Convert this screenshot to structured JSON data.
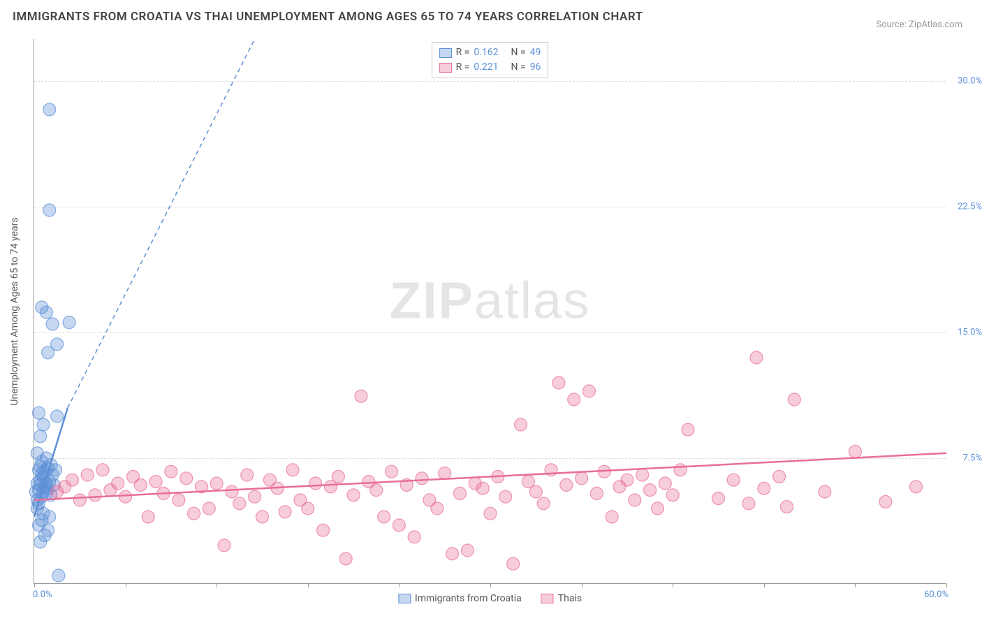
{
  "title": "IMMIGRANTS FROM CROATIA VS THAI UNEMPLOYMENT AMONG AGES 65 TO 74 YEARS CORRELATION CHART",
  "source": "Source: ZipAtlas.com",
  "watermark_a": "ZIP",
  "watermark_b": "atlas",
  "y_axis_label": "Unemployment Among Ages 65 to 74 years",
  "chart": {
    "type": "scatter",
    "background_color": "#ffffff",
    "grid_color": "#dddddd",
    "axis_color": "#999999",
    "xlim": [
      0,
      60
    ],
    "ylim": [
      0,
      32.5
    ],
    "y_ticks": [
      7.5,
      15.0,
      22.5,
      30.0
    ],
    "y_tick_labels": [
      "7.5%",
      "15.0%",
      "22.5%",
      "30.0%"
    ],
    "x_ticks": [
      0,
      6,
      12,
      18,
      24,
      30,
      36,
      42,
      48,
      54,
      60
    ],
    "x_label_0": "0.0%",
    "x_label_max": "60.0%",
    "marker_radius": 9,
    "marker_opacity": 0.35,
    "series": [
      {
        "name": "Immigrants from Croatia",
        "color": "#5b8fd6",
        "r": "0.162",
        "n": "49",
        "trend_line": {
          "x1": 0,
          "y1": 4.0,
          "x2": 2.2,
          "y2": 10.5,
          "dash_x2": 14.5,
          "dash_y2": 32.5
        },
        "points": [
          [
            0.1,
            5.5
          ],
          [
            0.2,
            5.0
          ],
          [
            0.3,
            5.6
          ],
          [
            0.4,
            6.2
          ],
          [
            0.3,
            6.8
          ],
          [
            0.5,
            5.2
          ],
          [
            0.6,
            6.4
          ],
          [
            0.4,
            7.0
          ],
          [
            0.2,
            4.5
          ],
          [
            0.7,
            5.8
          ],
          [
            0.5,
            6.6
          ],
          [
            0.8,
            6.0
          ],
          [
            0.9,
            6.9
          ],
          [
            0.6,
            5.5
          ],
          [
            0.3,
            4.8
          ],
          [
            0.4,
            5.9
          ],
          [
            0.7,
            6.7
          ],
          [
            0.5,
            7.3
          ],
          [
            0.8,
            5.4
          ],
          [
            1.0,
            6.1
          ],
          [
            1.1,
            7.1
          ],
          [
            0.9,
            5.7
          ],
          [
            1.2,
            6.5
          ],
          [
            0.6,
            4.2
          ],
          [
            0.2,
            6.0
          ],
          [
            0.3,
            3.5
          ],
          [
            0.5,
            3.8
          ],
          [
            0.7,
            2.9
          ],
          [
            0.9,
            3.2
          ],
          [
            0.4,
            2.5
          ],
          [
            1.0,
            4.0
          ],
          [
            1.3,
            5.9
          ],
          [
            1.4,
            6.8
          ],
          [
            0.8,
            7.5
          ],
          [
            1.1,
            5.3
          ],
          [
            0.2,
            7.8
          ],
          [
            0.4,
            8.8
          ],
          [
            0.6,
            9.5
          ],
          [
            0.3,
            10.2
          ],
          [
            1.5,
            10.0
          ],
          [
            0.9,
            13.8
          ],
          [
            1.5,
            14.3
          ],
          [
            1.2,
            15.5
          ],
          [
            0.8,
            16.2
          ],
          [
            0.5,
            16.5
          ],
          [
            2.3,
            15.6
          ],
          [
            1.0,
            22.3
          ],
          [
            1.0,
            28.3
          ],
          [
            1.6,
            0.5
          ]
        ]
      },
      {
        "name": "Thais",
        "color": "#e86e98",
        "r": "0.221",
        "n": "96",
        "trend_line": {
          "x1": 0,
          "y1": 5.0,
          "x2": 60,
          "y2": 7.8
        },
        "points": [
          [
            1.5,
            5.5
          ],
          [
            2.0,
            5.8
          ],
          [
            2.5,
            6.2
          ],
          [
            3.0,
            5.0
          ],
          [
            3.5,
            6.5
          ],
          [
            4.0,
            5.3
          ],
          [
            4.5,
            6.8
          ],
          [
            5.0,
            5.6
          ],
          [
            5.5,
            6.0
          ],
          [
            6.0,
            5.2
          ],
          [
            6.5,
            6.4
          ],
          [
            7.0,
            5.9
          ],
          [
            7.5,
            4.0
          ],
          [
            8.0,
            6.1
          ],
          [
            8.5,
            5.4
          ],
          [
            9.0,
            6.7
          ],
          [
            9.5,
            5.0
          ],
          [
            10.0,
            6.3
          ],
          [
            10.5,
            4.2
          ],
          [
            11.0,
            5.8
          ],
          [
            11.5,
            4.5
          ],
          [
            12.0,
            6.0
          ],
          [
            12.5,
            2.3
          ],
          [
            13.0,
            5.5
          ],
          [
            13.5,
            4.8
          ],
          [
            14.0,
            6.5
          ],
          [
            14.5,
            5.2
          ],
          [
            15.0,
            4.0
          ],
          [
            15.5,
            6.2
          ],
          [
            16.0,
            5.7
          ],
          [
            16.5,
            4.3
          ],
          [
            17.0,
            6.8
          ],
          [
            17.5,
            5.0
          ],
          [
            18.0,
            4.5
          ],
          [
            18.5,
            6.0
          ],
          [
            19.0,
            3.2
          ],
          [
            19.5,
            5.8
          ],
          [
            20.0,
            6.4
          ],
          [
            20.5,
            1.5
          ],
          [
            21.0,
            5.3
          ],
          [
            21.5,
            11.2
          ],
          [
            22.0,
            6.1
          ],
          [
            22.5,
            5.6
          ],
          [
            23.0,
            4.0
          ],
          [
            23.5,
            6.7
          ],
          [
            24.0,
            3.5
          ],
          [
            24.5,
            5.9
          ],
          [
            25.0,
            2.8
          ],
          [
            25.5,
            6.3
          ],
          [
            26.0,
            5.0
          ],
          [
            26.5,
            4.5
          ],
          [
            27.0,
            6.6
          ],
          [
            27.5,
            1.8
          ],
          [
            28.0,
            5.4
          ],
          [
            28.5,
            2.0
          ],
          [
            29.0,
            6.0
          ],
          [
            29.5,
            5.7
          ],
          [
            30.0,
            4.2
          ],
          [
            30.5,
            6.4
          ],
          [
            31.0,
            5.2
          ],
          [
            31.5,
            1.2
          ],
          [
            32.0,
            9.5
          ],
          [
            32.5,
            6.1
          ],
          [
            33.0,
            5.5
          ],
          [
            33.5,
            4.8
          ],
          [
            34.0,
            6.8
          ],
          [
            34.5,
            12.0
          ],
          [
            35.0,
            5.9
          ],
          [
            35.5,
            11.0
          ],
          [
            36.0,
            6.3
          ],
          [
            36.5,
            11.5
          ],
          [
            37.0,
            5.4
          ],
          [
            37.5,
            6.7
          ],
          [
            38.0,
            4.0
          ],
          [
            38.5,
            5.8
          ],
          [
            39.0,
            6.2
          ],
          [
            39.5,
            5.0
          ],
          [
            40.0,
            6.5
          ],
          [
            40.5,
            5.6
          ],
          [
            41.0,
            4.5
          ],
          [
            41.5,
            6.0
          ],
          [
            42.0,
            5.3
          ],
          [
            42.5,
            6.8
          ],
          [
            43.0,
            9.2
          ],
          [
            45.0,
            5.1
          ],
          [
            46.0,
            6.2
          ],
          [
            47.0,
            4.8
          ],
          [
            47.5,
            13.5
          ],
          [
            48.0,
            5.7
          ],
          [
            49.0,
            6.4
          ],
          [
            49.5,
            4.6
          ],
          [
            50.0,
            11.0
          ],
          [
            52.0,
            5.5
          ],
          [
            54.0,
            7.9
          ],
          [
            56.0,
            4.9
          ],
          [
            58.0,
            5.8
          ]
        ]
      }
    ]
  },
  "legend_bottom": [
    {
      "label": "Immigrants from Croatia",
      "swatch": "blue"
    },
    {
      "label": "Thais",
      "swatch": "pink"
    }
  ]
}
